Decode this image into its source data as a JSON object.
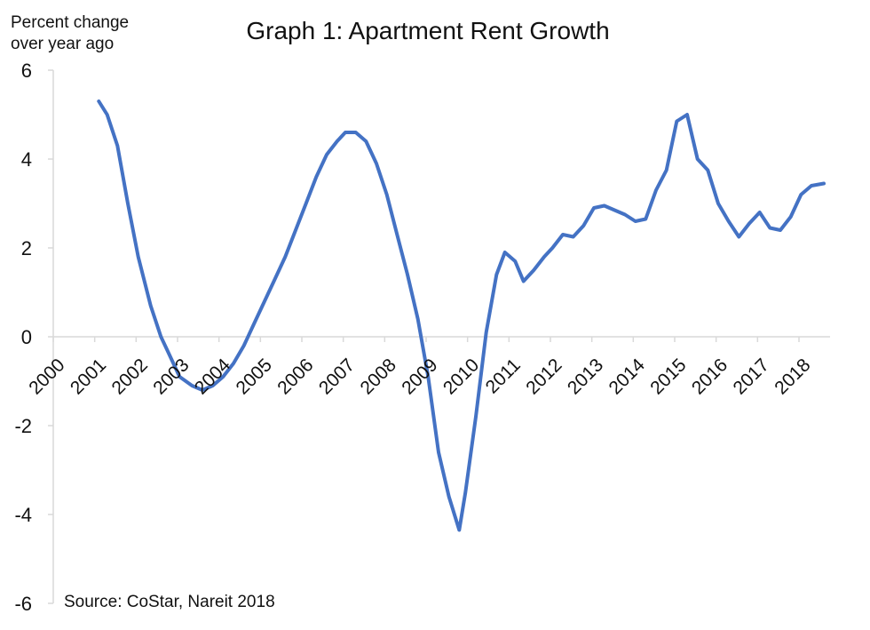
{
  "chart_data": {
    "type": "line",
    "title": "Graph 1: Apartment Rent Growth",
    "ylabel": [
      "Percent change",
      "over year ago"
    ],
    "xlabel": "",
    "source": "Source: CoStar, Nareit 2018",
    "ylim": [
      -6,
      6
    ],
    "xlim": [
      2000,
      2018.75
    ],
    "y_ticks": [
      6,
      4,
      2,
      0,
      -2,
      -4,
      -6
    ],
    "y_tick_labels": [
      "6",
      "4",
      "2",
      "0",
      "-2",
      "-4",
      "-6"
    ],
    "x_ticks": [
      2000,
      2001,
      2002,
      2003,
      2004,
      2005,
      2006,
      2007,
      2008,
      2009,
      2010,
      2011,
      2012,
      2013,
      2014,
      2015,
      2016,
      2017,
      2018
    ],
    "x_tick_labels": [
      "2000",
      "2001",
      "2002",
      "2003",
      "2004",
      "2005",
      "2006",
      "2007",
      "2008",
      "2009",
      "2010",
      "2011",
      "2012",
      "2013",
      "2014",
      "2015",
      "2016",
      "2017",
      "2018"
    ],
    "grid": false,
    "legend": "none",
    "colors": {
      "series": "#4472c4",
      "axis": "#d9d9d9"
    },
    "series": [
      {
        "x": [
          2001.1,
          2001.3,
          2001.55,
          2001.8,
          2002.05,
          2002.35,
          2002.6,
          2002.8,
          2003.05,
          2003.35,
          2003.6,
          2003.85,
          2004.1,
          2004.35,
          2004.6,
          2004.85,
          2005.1,
          2005.35,
          2005.6,
          2005.85,
          2006.1,
          2006.35,
          2006.6,
          2006.85,
          2007.05,
          2007.3,
          2007.55,
          2007.8,
          2008.05,
          2008.3,
          2008.55,
          2008.8,
          2009.05,
          2009.3,
          2009.55,
          2009.8,
          2009.95,
          2010.2,
          2010.45,
          2010.7,
          2010.9,
          2011.15,
          2011.35,
          2011.6,
          2011.85,
          2012.05,
          2012.3,
          2012.55,
          2012.8,
          2013.05,
          2013.3,
          2013.55,
          2013.8,
          2014.05,
          2014.3,
          2014.55,
          2014.8,
          2015.05,
          2015.3,
          2015.55,
          2015.8,
          2016.05,
          2016.3,
          2016.55,
          2016.8,
          2017.05,
          2017.3,
          2017.55,
          2017.8,
          2018.05,
          2018.3,
          2018.6
        ],
        "values": [
          5.3,
          5.0,
          4.3,
          3.0,
          1.8,
          0.7,
          0.0,
          -0.4,
          -0.9,
          -1.1,
          -1.2,
          -1.1,
          -0.9,
          -0.6,
          -0.2,
          0.3,
          0.8,
          1.3,
          1.8,
          2.4,
          3.0,
          3.6,
          4.1,
          4.4,
          4.6,
          4.6,
          4.4,
          3.9,
          3.2,
          2.3,
          1.4,
          0.4,
          -0.9,
          -2.6,
          -3.6,
          -4.35,
          -3.5,
          -1.8,
          0.1,
          1.4,
          1.9,
          1.7,
          1.25,
          1.5,
          1.8,
          2.0,
          2.3,
          2.25,
          2.5,
          2.9,
          2.95,
          2.85,
          2.75,
          2.6,
          2.65,
          3.3,
          3.75,
          4.85,
          5.0,
          4.0,
          3.75,
          3.0,
          2.6,
          2.25,
          2.55,
          2.8,
          2.45,
          2.4,
          2.7,
          3.2,
          3.4,
          3.45
        ]
      }
    ]
  }
}
